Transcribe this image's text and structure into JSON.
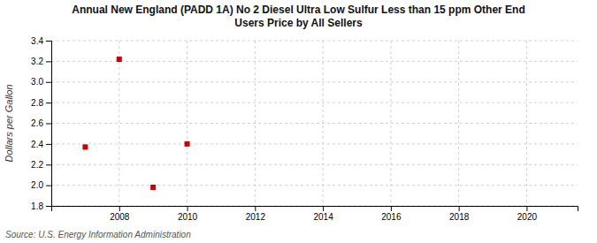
{
  "chart_data": {
    "type": "scatter",
    "title": "Annual New England (PADD 1A) No 2 Diesel Ultra Low Sulfur Less than 15 ppm Other End\nUsers Price by All Sellers",
    "ylabel": "Dollars per Gallon",
    "annotations": [
      "Source: U.S. Energy Information Administration"
    ],
    "x": [
      2007,
      2008,
      2009,
      2010
    ],
    "values": [
      2.37,
      3.22,
      1.98,
      2.4
    ],
    "color": "#cc0000",
    "marker": "square",
    "xlim": [
      2006.0,
      2021.5
    ],
    "ylim": [
      1.8,
      3.4
    ],
    "xticks": [
      2008,
      2010,
      2012,
      2014,
      2016,
      2018,
      2020
    ],
    "yticks": [
      1.8,
      {
        "value": 2.0,
        "label": "2.0"
      },
      2.2,
      2.4,
      2.6,
      2.8,
      {
        "value": 3.0,
        "label": "3.0"
      },
      3.2,
      3.4
    ],
    "grid": true
  }
}
